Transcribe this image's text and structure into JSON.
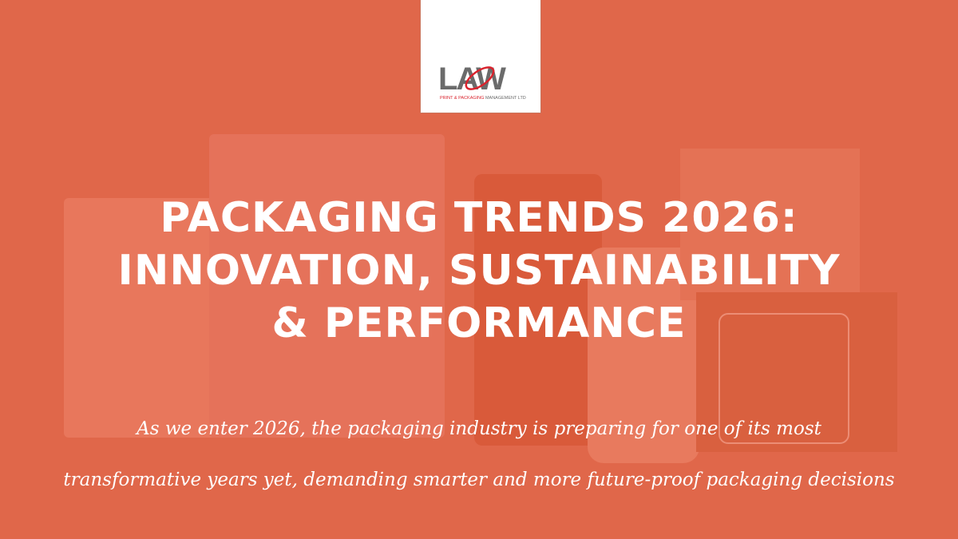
{
  "logo": {
    "text": "LAW",
    "tagline": "PRINT & PACKAGING MANAGEMENT LTD",
    "colors": {
      "gray": "#6b6b6b",
      "red": "#d9232d"
    }
  },
  "title": {
    "line1": "PACKAGING TRENDS 2026:",
    "line2": "INNOVATION, SUSTAINABILITY",
    "line3": "& PERFORMANCE"
  },
  "subtitle": {
    "line1": "As we enter 2026, the packaging industry is preparing for one of its most",
    "line2": "transformative years yet, demanding smarter and more future-proof packaging decisions"
  },
  "colors": {
    "background": "#e0674a",
    "text": "#ffffff"
  }
}
